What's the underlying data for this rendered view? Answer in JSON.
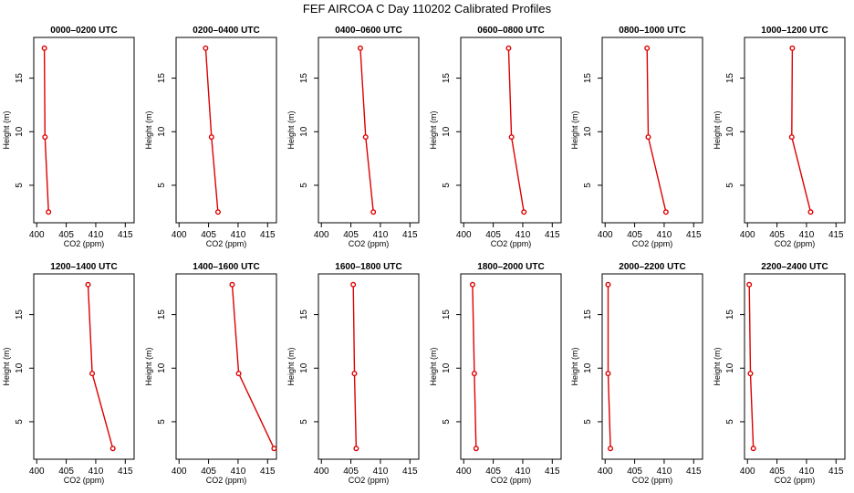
{
  "figure": {
    "title": "FEF AIRCOA C  Day 110202  Calibrated Profiles"
  },
  "chart_data": {
    "type": "line",
    "xlabel": "CO2 (ppm)",
    "ylabel": "Height (m)",
    "xlim": [
      399.5,
      416.5
    ],
    "ylim": [
      1.5,
      18.8
    ],
    "xticks": [
      400,
      405,
      410,
      415
    ],
    "yticks": [
      5,
      10,
      15
    ],
    "line_color": "#dd0000",
    "heights": [
      2.5,
      9.5,
      17.8
    ],
    "panels": [
      {
        "title": "0000–0200 UTC",
        "co2": [
          402.0,
          401.4,
          401.3
        ]
      },
      {
        "title": "0200–0400 UTC",
        "co2": [
          406.6,
          405.5,
          404.5
        ]
      },
      {
        "title": "0400–0600 UTC",
        "co2": [
          408.8,
          407.5,
          406.6
        ]
      },
      {
        "title": "0600–0800 UTC",
        "co2": [
          410.2,
          408.1,
          407.6
        ]
      },
      {
        "title": "0800–1000 UTC",
        "co2": [
          410.3,
          407.3,
          407.1
        ]
      },
      {
        "title": "1000–1200 UTC",
        "co2": [
          410.7,
          407.5,
          407.6
        ]
      },
      {
        "title": "1200–1400 UTC",
        "co2": [
          412.9,
          409.4,
          408.7
        ]
      },
      {
        "title": "1400–1600 UTC",
        "co2": [
          416.1,
          410.1,
          409.0
        ]
      },
      {
        "title": "1600–1800 UTC",
        "co2": [
          405.9,
          405.6,
          405.4
        ]
      },
      {
        "title": "1800–2000 UTC",
        "co2": [
          402.1,
          401.8,
          401.5
        ]
      },
      {
        "title": "2000–2200 UTC",
        "co2": [
          400.9,
          400.5,
          400.5
        ]
      },
      {
        "title": "2200–2400 UTC",
        "co2": [
          401.0,
          400.5,
          400.3
        ]
      }
    ]
  }
}
